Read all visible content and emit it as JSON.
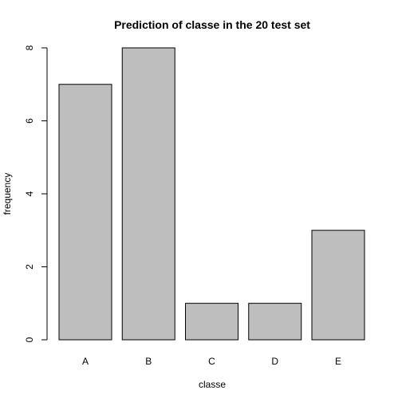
{
  "chart_data": {
    "type": "bar",
    "title": "Prediction of classe in the 20 test set",
    "xlabel": "classe",
    "ylabel": "frequency",
    "categories": [
      "A",
      "B",
      "C",
      "D",
      "E"
    ],
    "values": [
      7,
      8,
      1,
      1,
      3
    ],
    "ylim": [
      0,
      8
    ],
    "yticks": [
      "0",
      "2",
      "4",
      "6",
      "8"
    ],
    "grid": false,
    "legend": "none",
    "bar_color": "#bebebe",
    "bar_border_color": "#000000"
  }
}
